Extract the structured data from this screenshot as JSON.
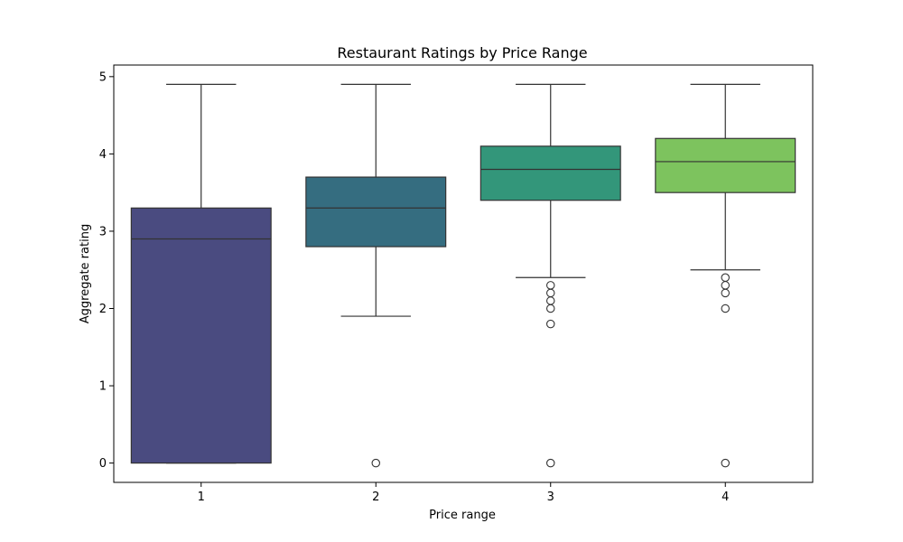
{
  "chart_data": {
    "type": "box",
    "title": "Restaurant Ratings by Price Range",
    "xlabel": "Price range",
    "ylabel": "Aggregate rating",
    "categories": [
      "1",
      "2",
      "3",
      "4"
    ],
    "ylim": [
      -0.25,
      5.15
    ],
    "yticks": [
      0,
      1,
      2,
      3,
      4,
      5
    ],
    "grid": false,
    "boxes": [
      {
        "category": "1",
        "whisker_low": 0.0,
        "q1": 0.0,
        "median": 2.9,
        "q3": 3.3,
        "whisker_high": 4.9,
        "outliers": [],
        "color": "#4a4b80"
      },
      {
        "category": "2",
        "whisker_low": 1.9,
        "q1": 2.8,
        "median": 3.3,
        "q3": 3.7,
        "whisker_high": 4.9,
        "outliers": [
          0.0
        ],
        "color": "#356d80"
      },
      {
        "category": "3",
        "whisker_low": 2.4,
        "q1": 3.4,
        "median": 3.8,
        "q3": 4.1,
        "whisker_high": 4.9,
        "outliers": [
          2.3,
          2.2,
          2.1,
          2.0,
          1.8,
          0.0
        ],
        "color": "#33967a"
      },
      {
        "category": "4",
        "whisker_low": 2.5,
        "q1": 3.5,
        "median": 3.9,
        "q3": 4.2,
        "whisker_high": 4.9,
        "outliers": [
          2.4,
          2.3,
          2.2,
          2.0,
          0.0
        ],
        "color": "#7dc35e"
      }
    ]
  }
}
